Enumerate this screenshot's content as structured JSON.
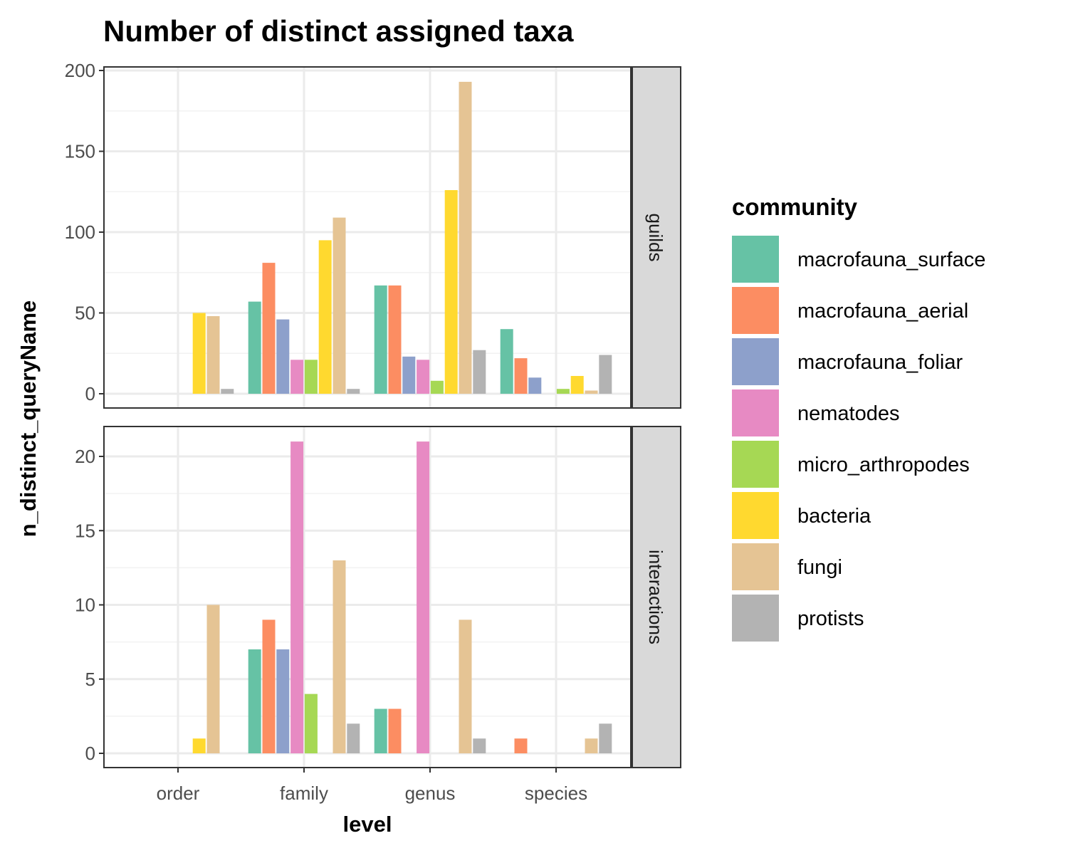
{
  "chart_data": {
    "type": "bar",
    "title": "Number of distinct assigned taxa",
    "xlabel": "level",
    "ylabel": "n_distinct_queryName",
    "categories": [
      "order",
      "family",
      "genus",
      "species"
    ],
    "legend_title": "community",
    "legend_position": "right",
    "grid": true,
    "series": [
      {
        "name": "macrofauna_surface",
        "color": "#66c2a5"
      },
      {
        "name": "macrofauna_aerial",
        "color": "#fc8d62"
      },
      {
        "name": "macrofauna_foliar",
        "color": "#8da0cb"
      },
      {
        "name": "nematodes",
        "color": "#e78ac3"
      },
      {
        "name": "micro_arthropodes",
        "color": "#a6d854"
      },
      {
        "name": "bacteria",
        "color": "#ffd92f"
      },
      {
        "name": "fungi",
        "color": "#e5c494"
      },
      {
        "name": "protists",
        "color": "#b3b3b3"
      }
    ],
    "panels": [
      {
        "label": "guilds",
        "ylim": [
          0,
          200
        ],
        "yticks": [
          0,
          50,
          100,
          150,
          200
        ],
        "values": {
          "order": [
            null,
            null,
            null,
            null,
            null,
            50,
            48,
            3
          ],
          "family": [
            57,
            81,
            46,
            21,
            21,
            95,
            109,
            3
          ],
          "genus": [
            67,
            67,
            23,
            21,
            8,
            126,
            193,
            27
          ],
          "species": [
            40,
            22,
            10,
            null,
            3,
            11,
            2,
            24
          ]
        }
      },
      {
        "label": "interactions",
        "ylim": [
          0,
          21.5
        ],
        "yticks": [
          0,
          5,
          10,
          15,
          20
        ],
        "values": {
          "order": [
            null,
            null,
            null,
            null,
            null,
            1,
            10,
            null
          ],
          "family": [
            7,
            9,
            7,
            21,
            4,
            null,
            13,
            2
          ],
          "genus": [
            3,
            3,
            null,
            21,
            null,
            null,
            9,
            1
          ],
          "species": [
            null,
            1,
            null,
            null,
            null,
            null,
            1,
            2
          ]
        }
      }
    ]
  }
}
